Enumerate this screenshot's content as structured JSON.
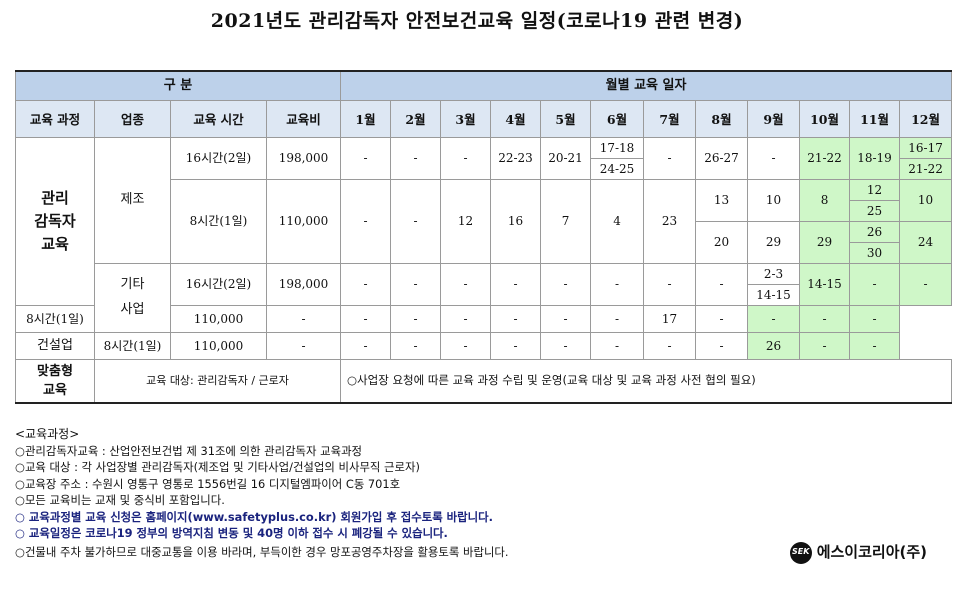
{
  "title": "2021년도 관리감독자 안전보건교육 일정(코로나19 관련 변경)",
  "header": {
    "group_left": "구 분",
    "group_right": "월별 교육 일자",
    "col_course": "교육 과정",
    "col_industry": "업종",
    "col_time": "교육 시간",
    "col_fee": "교육비",
    "months": [
      "1월",
      "2월",
      "3월",
      "4월",
      "5월",
      "6월",
      "7월",
      "8월",
      "9월",
      "10월",
      "11월",
      "12월"
    ]
  },
  "course_main": "관리\n감독자\n교육",
  "industries": {
    "mfg": "제조",
    "other": "기타\n사업",
    "construction": "건설업"
  },
  "times": {
    "two_day": "16시간(2일)",
    "one_day": "8시간(1일)"
  },
  "fees": {
    "two_day": "198,000",
    "one_day": "110,000"
  },
  "dash": "-",
  "mfg16": {
    "m4": "22-23",
    "m5": "20-21",
    "m6a": "17-18",
    "m6b": "24-25",
    "m8": "26-27",
    "m10": "21-22",
    "m11": "18-19",
    "m12a": "16-17",
    "m12b": "21-22"
  },
  "mfg8": {
    "m3": "12",
    "m4": "16",
    "m5": "7",
    "m6": "4",
    "m7": "23",
    "m8a": "13",
    "m8b": "20",
    "m9a": "10",
    "m9b": "29",
    "m10a": "8",
    "m10b": "29",
    "m11a": "12",
    "m11b": "25",
    "m11c": "26",
    "m11d": "30",
    "m12a": "10",
    "m12b": "24"
  },
  "other16": {
    "m9a": "2-3",
    "m9b": "14-15",
    "m10": "14-15"
  },
  "other8": {
    "m8": "17"
  },
  "const8": {
    "m10": "26"
  },
  "custom": {
    "label": "맞춤형\n교육",
    "target": "교육 대상: 관리감독자 / 근로자",
    "note": "○사업장 요청에 따른 교육 과정 수립 및 운영(교육 대상 및 교육 과정 사전 협의 필요)"
  },
  "notes": {
    "heading": "<교육과정>",
    "lines": [
      "○관리감독자교육 : 산업안전보건법 제 31조에 의한 관리감독자 교육과정",
      "○교육 대상 : 각 사업장별 관리감독자(제조업 및 기타사업/건설업의 비사무직 근로자)",
      "○교육장 주소 : 수원시 영통구 영통로 1556번길 16 디지털엠파이어 C동 701호",
      "○모든 교육비는 교재 및 중식비 포함입니다."
    ],
    "emph_lines": [
      "○ 교육과정별 교육 신청은 홈페이지(www.safetyplus.co.kr) 회원가입 후 접수토록 바랍니다.",
      "○ 교육일정은 코로나19 정부의 방역지침 변동 및 40명 이하 접수 시 폐강될 수 있습니다."
    ],
    "last_line": "○건물내 주차 불가하므로 대중교통을 이용 바라며, 부득이한 경우 망포공영주차장을 활용토록 바랍니다."
  },
  "brand": {
    "logo_text": "SEK",
    "name": "에스이코리아(주)"
  },
  "colors": {
    "header_dark": "#bdd1ea",
    "header_light": "#dde7f3",
    "highlight": "#cff7c8",
    "emphasis_text": "#1a237e"
  }
}
